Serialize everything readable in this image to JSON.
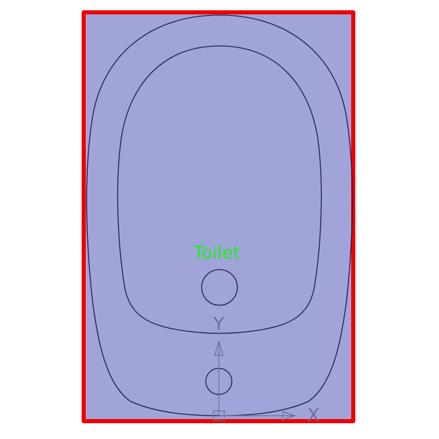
{
  "diagram": {
    "label": "Toilet",
    "ucs_y_label": "Y",
    "ucs_x_label": "X",
    "colors": {
      "background": "#ffffff",
      "fill": "#a0a4d8",
      "border": "#ee0000",
      "outline": "#1c1c4a",
      "label": "#22ee22",
      "ucs_icon": "#6e6e96"
    }
  }
}
